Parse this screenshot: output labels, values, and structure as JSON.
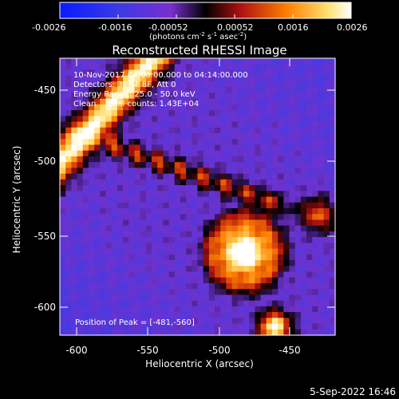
{
  "colorbar": {
    "ticks": [
      "-0.0026",
      "-0.0016",
      "-0.00052",
      "0.00052",
      "0.0016",
      "0.0026"
    ],
    "unit_label": "(photons cm",
    "unit_exp1": "-2",
    "unit_mid": " s",
    "unit_exp2": "-1",
    "unit_end": " asec",
    "unit_exp3": "-2",
    "unit_close": ")"
  },
  "title": "Reconstructed RHESSI Image",
  "info": {
    "line1": "10-Nov-2017 04:08:00.000 to 04:14:00.000",
    "line2": "Detectors: 3F 6F 8F, Att 0",
    "line3": "Energy Range: 25.0 - 50.0 keV",
    "line4": "Clean    Total counts: 1.43E+04"
  },
  "peak_label": "Position of Peak = [-481,-560]",
  "axes": {
    "xlabel": "Heliocentric X (arcsec)",
    "ylabel": "Heliocentric Y (arcsec)",
    "x_ticks": [
      "-600",
      "-550",
      "-500",
      "-450"
    ],
    "y_ticks": [
      "-450",
      "-500",
      "-550",
      "-600"
    ]
  },
  "timestamp": "5-Sep-2022 16:46",
  "colors": {
    "background": "#000000",
    "colormap": [
      "#1a1aff",
      "#6a2fd6",
      "#3a1a6a",
      "#000000",
      "#b01010",
      "#ff7a00",
      "#ffe080",
      "#ffffff"
    ]
  }
}
